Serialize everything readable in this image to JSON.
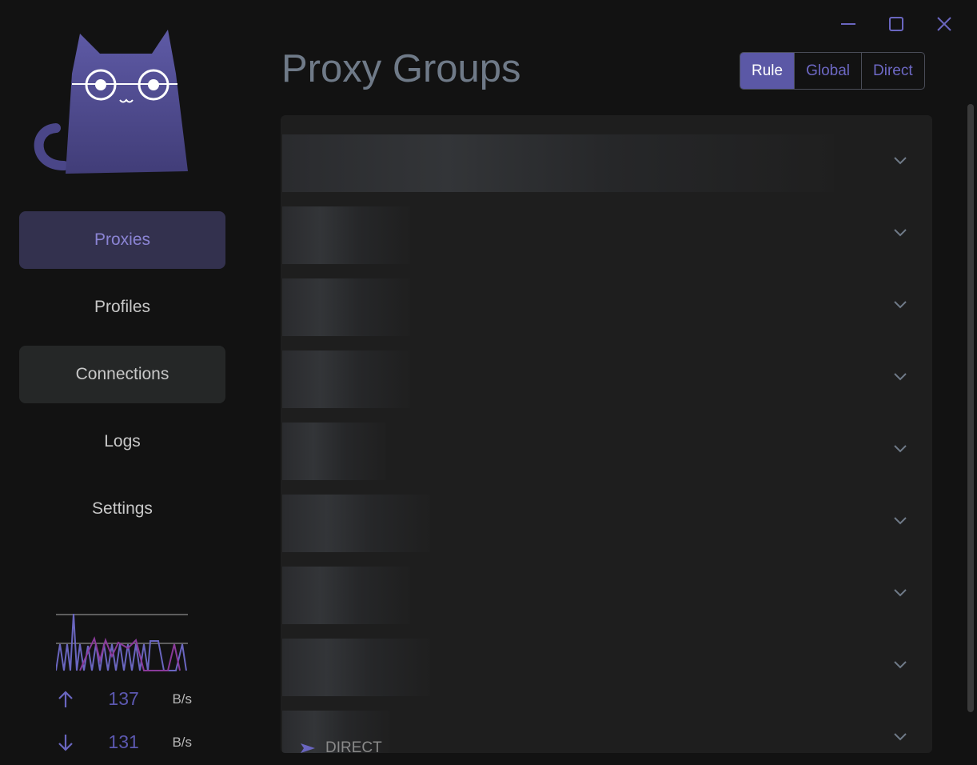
{
  "window": {
    "controls": [
      "minimize",
      "maximize",
      "close"
    ]
  },
  "sidebar": {
    "items": [
      {
        "label": "Proxies",
        "state": "selected"
      },
      {
        "label": "Profiles"
      },
      {
        "label": "Connections",
        "state": "hover"
      },
      {
        "label": "Logs"
      },
      {
        "label": "Settings"
      }
    ]
  },
  "traffic": {
    "upload": "137",
    "download": "131",
    "unit": "B/s"
  },
  "header": {
    "title": "Proxy Groups",
    "modes": [
      "Rule",
      "Global",
      "Direct"
    ],
    "active_mode": "Rule"
  },
  "groups": {
    "count_visible": 9,
    "last_partial": "DIRECT"
  },
  "colors": {
    "accent": "#5b58a6",
    "background": "#121212",
    "panel": "#1e1e1e"
  }
}
